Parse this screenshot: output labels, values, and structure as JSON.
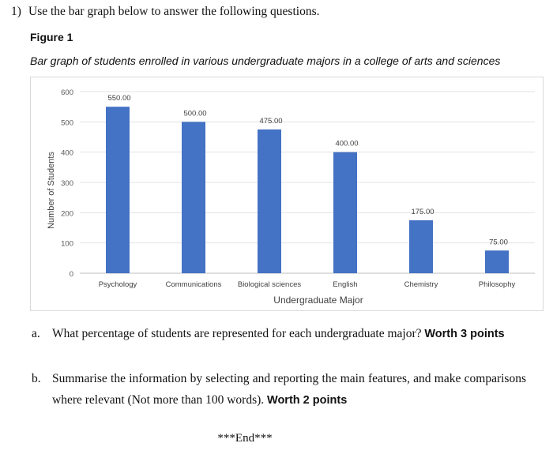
{
  "question": {
    "number": "1)",
    "text": "Use the bar graph below to answer the following questions."
  },
  "figure": {
    "label": "Figure 1",
    "caption": "Bar graph of students enrolled in various undergraduate majors in a college of arts and sciences"
  },
  "chart_data": {
    "type": "bar",
    "categories": [
      "Psychology",
      "Communications",
      "Biological sciences",
      "English",
      "Chemistry",
      "Philosophy"
    ],
    "values": [
      550,
      500,
      475,
      400,
      175,
      75
    ],
    "data_labels": [
      "550.00",
      "500.00",
      "475.00",
      "400.00",
      "175.00",
      "75.00"
    ],
    "xlabel": "Undergraduate Major",
    "ylabel": "Number of Students",
    "ylim": [
      0,
      600
    ],
    "yticks": [
      0,
      100,
      200,
      300,
      400,
      500,
      600
    ],
    "grid": true,
    "bar_color": "#4472c4"
  },
  "parts": [
    {
      "marker": "a.",
      "text": "What percentage of students are represented for each undergraduate major?",
      "points": "Worth 3 points"
    },
    {
      "marker": "b.",
      "text": "Summarise the information by selecting and reporting the main features, and make comparisons where relevant (Not more than 100 words).",
      "points": "Worth 2 points"
    }
  ],
  "end_text": "***End***"
}
